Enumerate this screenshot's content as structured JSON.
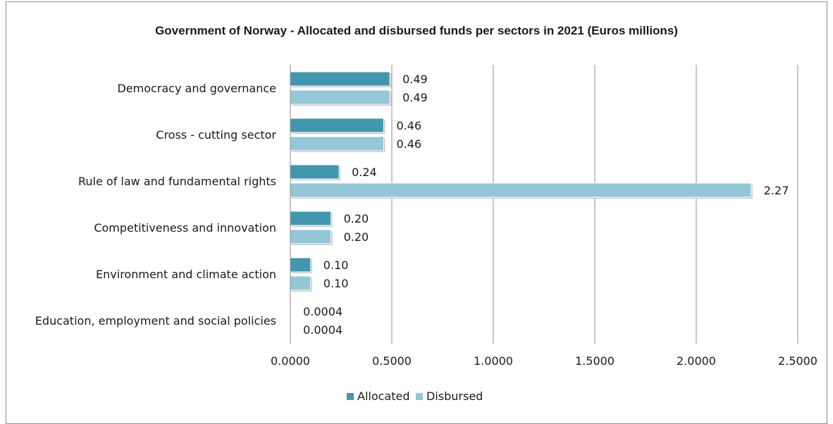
{
  "chart_data": {
    "type": "bar",
    "orientation": "horizontal",
    "title": "Government of Norway - Allocated and disbursed funds per sectors in 2021 (Euros millions)",
    "categories": [
      "Democracy and governance",
      "Cross - cutting sector",
      "Rule of law and fundamental rights",
      "Competitiveness and innovation",
      "Environment and climate action",
      "Education, employment and social policies"
    ],
    "series": [
      {
        "name": "Allocated",
        "values": [
          0.49,
          0.46,
          0.24,
          0.2,
          0.1,
          0.0004
        ],
        "labels": [
          "0.49",
          "0.46",
          "0.24",
          "0.20",
          "0.10",
          "0.0004"
        ]
      },
      {
        "name": "Disbursed",
        "values": [
          0.49,
          0.46,
          2.27,
          0.2,
          0.1,
          0.0004
        ],
        "labels": [
          "0.49",
          "0.46",
          "2.27",
          "0.20",
          "0.10",
          "0.0004"
        ]
      }
    ],
    "colors": {
      "Allocated": "#4197ae",
      "Disbursed": "#93c6d7",
      "grid": "#8c8c8c"
    },
    "xlim": [
      0,
      2.5
    ],
    "xticks": [
      0,
      0.5,
      1.0,
      1.5,
      2.0,
      2.5
    ],
    "xtick_labels": [
      "0.0000",
      "0.5000",
      "1.0000",
      "1.5000",
      "2.0000",
      "2.5000"
    ],
    "grid": "vertical",
    "legend": "bottom"
  }
}
